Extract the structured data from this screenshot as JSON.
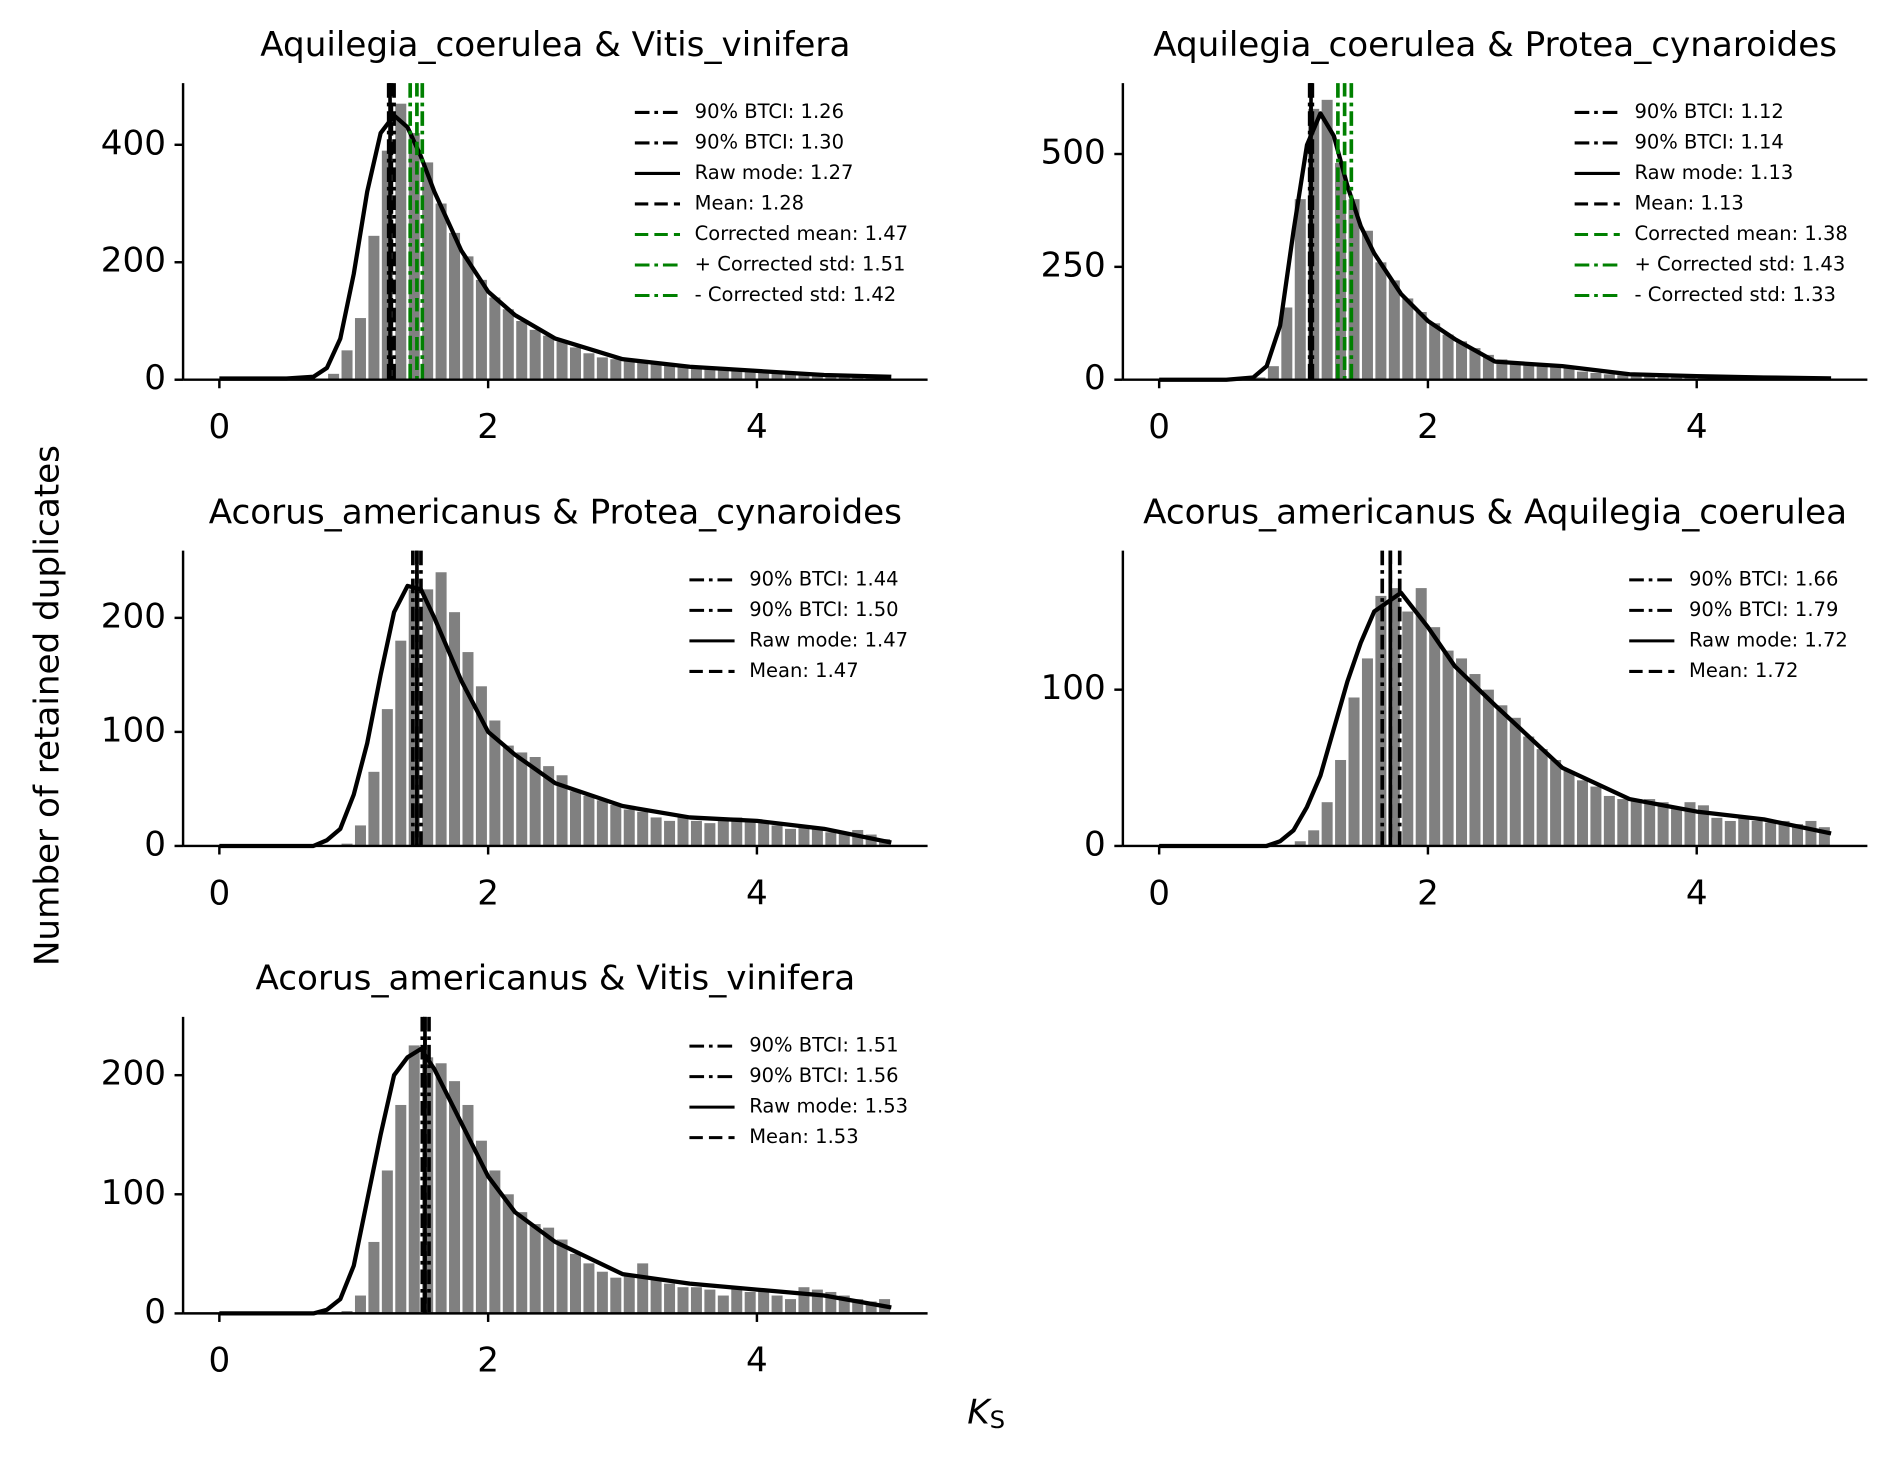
{
  "figure": {
    "ylabel": "Number of retained duplicates",
    "xlabel": "K",
    "xlabel_subscript": "S"
  },
  "chart_data": [
    {
      "type": "histogram",
      "title": "Aquilegia_coerulea & Vitis_vinifera",
      "color": "#808080",
      "bins": [
        0,
        0.1,
        0.2,
        0.3,
        0.4,
        0.5,
        0.6,
        0.7,
        0.8,
        0.9,
        1,
        1.1,
        1.2,
        1.3,
        1.4,
        1.5,
        1.6,
        1.7,
        1.8,
        1.9,
        2,
        2.1,
        2.2,
        2.3,
        2.4,
        2.5,
        2.6,
        2.7,
        2.8,
        2.9,
        3,
        3.1,
        3.2,
        3.3,
        3.4,
        3.5,
        3.6,
        3.7,
        3.8,
        3.9,
        4,
        4.1,
        4.2,
        4.3,
        4.4,
        4.5,
        4.6,
        4.7,
        4.8,
        4.9,
        5
      ],
      "values": [
        0,
        0,
        0,
        0,
        0,
        0,
        0,
        2,
        10,
        50,
        105,
        245,
        390,
        470,
        420,
        370,
        300,
        250,
        210,
        170,
        140,
        120,
        100,
        85,
        75,
        65,
        55,
        45,
        38,
        35,
        32,
        30,
        28,
        25,
        22,
        20,
        18,
        17,
        16,
        15,
        14,
        13,
        12,
        11,
        10,
        10,
        9,
        9,
        8,
        7
      ],
      "kde": {
        "color": "#000000",
        "x": [
          0,
          0.5,
          0.7,
          0.8,
          0.9,
          1,
          1.1,
          1.2,
          1.3,
          1.4,
          1.5,
          1.6,
          1.8,
          2,
          2.2,
          2.5,
          3,
          3.5,
          4,
          4.5,
          5
        ],
        "values": [
          2,
          2,
          5,
          20,
          70,
          180,
          320,
          420,
          450,
          430,
          380,
          320,
          220,
          150,
          110,
          70,
          35,
          22,
          15,
          8,
          5
        ]
      },
      "lines": [
        {
          "label": "90% BTCI: 1.26",
          "value": 1.26,
          "color": "#000000",
          "style": "dashdot"
        },
        {
          "label": "90% BTCI: 1.30",
          "value": 1.3,
          "color": "#000000",
          "style": "dashdot"
        },
        {
          "label": "Raw mode: 1.27",
          "value": 1.27,
          "color": "#000000",
          "style": "solid"
        },
        {
          "label": "Mean: 1.28",
          "value": 1.28,
          "color": "#000000",
          "style": "dashed"
        },
        {
          "label": "Corrected mean: 1.47",
          "value": 1.47,
          "color": "#008000",
          "style": "dashed"
        },
        {
          "label": "+ Corrected std: 1.51",
          "value": 1.51,
          "color": "#008000",
          "style": "dashdot"
        },
        {
          "label": "- Corrected std: 1.42",
          "value": 1.42,
          "color": "#008000",
          "style": "dashdot"
        }
      ],
      "xlim": [
        -0.27,
        5.27
      ],
      "xticks": [
        0,
        2,
        4
      ],
      "ylim": [
        0,
        505
      ],
      "yticks": [
        0,
        200,
        400
      ]
    },
    {
      "type": "histogram",
      "title": "Aquilegia_coerulea & Protea_cynaroides",
      "color": "#808080",
      "bins": [
        0,
        0.1,
        0.2,
        0.3,
        0.4,
        0.5,
        0.6,
        0.7,
        0.8,
        0.9,
        1,
        1.1,
        1.2,
        1.3,
        1.4,
        1.5,
        1.6,
        1.7,
        1.8,
        1.9,
        2,
        2.1,
        2.2,
        2.3,
        2.4,
        2.5,
        2.6,
        2.7,
        2.8,
        2.9,
        3,
        3.1,
        3.2,
        3.3,
        3.4,
        3.5,
        3.6,
        3.7,
        3.8,
        3.9,
        4,
        4.1,
        4.2,
        4.3,
        4.4,
        4.5,
        4.6,
        4.7,
        4.8,
        4.9,
        5
      ],
      "values": [
        0,
        0,
        0,
        0,
        0,
        0,
        0,
        5,
        30,
        160,
        400,
        600,
        620,
        480,
        400,
        330,
        260,
        220,
        180,
        150,
        125,
        100,
        85,
        70,
        55,
        45,
        35,
        38,
        35,
        32,
        25,
        18,
        15,
        12,
        10,
        9,
        8,
        7,
        6,
        6,
        5,
        5,
        4,
        4,
        4,
        3,
        3,
        3,
        2,
        2
      ],
      "kde": {
        "color": "#000000",
        "x": [
          0,
          0.5,
          0.7,
          0.8,
          0.9,
          1,
          1.1,
          1.2,
          1.3,
          1.4,
          1.5,
          1.6,
          1.8,
          2,
          2.2,
          2.5,
          3,
          3.5,
          4,
          4.5,
          5
        ],
        "values": [
          0,
          0,
          5,
          30,
          120,
          330,
          520,
          590,
          540,
          430,
          340,
          280,
          190,
          130,
          90,
          40,
          30,
          12,
          8,
          5,
          3
        ]
      },
      "lines": [
        {
          "label": "90% BTCI: 1.12",
          "value": 1.12,
          "color": "#000000",
          "style": "dashdot"
        },
        {
          "label": "90% BTCI: 1.14",
          "value": 1.14,
          "color": "#000000",
          "style": "dashdot"
        },
        {
          "label": "Raw mode: 1.13",
          "value": 1.13,
          "color": "#000000",
          "style": "solid"
        },
        {
          "label": "Mean: 1.13",
          "value": 1.13,
          "color": "#000000",
          "style": "dashed"
        },
        {
          "label": "Corrected mean: 1.38",
          "value": 1.38,
          "color": "#008000",
          "style": "dashed"
        },
        {
          "label": "+ Corrected std: 1.43",
          "value": 1.43,
          "color": "#008000",
          "style": "dashdot"
        },
        {
          "label": "- Corrected std: 1.33",
          "value": 1.33,
          "color": "#008000",
          "style": "dashdot"
        }
      ],
      "xlim": [
        -0.27,
        5.27
      ],
      "xticks": [
        0,
        2,
        4
      ],
      "ylim": [
        0,
        657
      ],
      "yticks": [
        0,
        250,
        500
      ]
    },
    {
      "type": "histogram",
      "title": "Acorus_americanus & Protea_cynaroides",
      "color": "#808080",
      "bins": [
        0,
        0.1,
        0.2,
        0.3,
        0.4,
        0.5,
        0.6,
        0.7,
        0.8,
        0.9,
        1,
        1.1,
        1.2,
        1.3,
        1.4,
        1.5,
        1.6,
        1.7,
        1.8,
        1.9,
        2,
        2.1,
        2.2,
        2.3,
        2.4,
        2.5,
        2.6,
        2.7,
        2.8,
        2.9,
        3,
        3.1,
        3.2,
        3.3,
        3.4,
        3.5,
        3.6,
        3.7,
        3.8,
        3.9,
        4,
        4.1,
        4.2,
        4.3,
        4.4,
        4.5,
        4.6,
        4.7,
        4.8,
        4.9,
        5
      ],
      "values": [
        0,
        0,
        0,
        0,
        0,
        0,
        0,
        0,
        0,
        2,
        18,
        65,
        120,
        180,
        225,
        225,
        240,
        205,
        170,
        140,
        110,
        88,
        82,
        78,
        70,
        62,
        48,
        44,
        40,
        36,
        32,
        30,
        25,
        22,
        25,
        22,
        20,
        22,
        25,
        22,
        20,
        18,
        15,
        18,
        15,
        12,
        12,
        14,
        10,
        6
      ],
      "kde": {
        "color": "#000000",
        "x": [
          0,
          0.5,
          0.7,
          0.8,
          0.9,
          1,
          1.1,
          1.2,
          1.3,
          1.4,
          1.5,
          1.6,
          1.8,
          2,
          2.2,
          2.5,
          3,
          3.5,
          4,
          4.5,
          5
        ],
        "values": [
          0,
          0,
          0,
          5,
          15,
          45,
          90,
          150,
          205,
          228,
          225,
          200,
          145,
          100,
          80,
          55,
          35,
          25,
          22,
          15,
          3
        ]
      },
      "lines": [
        {
          "label": "90% BTCI: 1.44",
          "value": 1.44,
          "color": "#000000",
          "style": "dashdot"
        },
        {
          "label": "90% BTCI: 1.50",
          "value": 1.5,
          "color": "#000000",
          "style": "dashdot"
        },
        {
          "label": "Raw mode: 1.47",
          "value": 1.47,
          "color": "#000000",
          "style": "solid"
        },
        {
          "label": "Mean: 1.47",
          "value": 1.47,
          "color": "#000000",
          "style": "dashed"
        }
      ],
      "xlim": [
        -0.27,
        5.27
      ],
      "xticks": [
        0,
        2,
        4
      ],
      "ylim": [
        0,
        259
      ],
      "yticks": [
        0,
        100,
        200
      ]
    },
    {
      "type": "histogram",
      "title": "Acorus_americanus & Aquilegia_coerulea",
      "color": "#808080",
      "bins": [
        0,
        0.1,
        0.2,
        0.3,
        0.4,
        0.5,
        0.6,
        0.7,
        0.8,
        0.9,
        1,
        1.1,
        1.2,
        1.3,
        1.4,
        1.5,
        1.6,
        1.7,
        1.8,
        1.9,
        2,
        2.1,
        2.2,
        2.3,
        2.4,
        2.5,
        2.6,
        2.7,
        2.8,
        2.9,
        3,
        3.1,
        3.2,
        3.3,
        3.4,
        3.5,
        3.6,
        3.7,
        3.8,
        3.9,
        4,
        4.1,
        4.2,
        4.3,
        4.4,
        4.5,
        4.6,
        4.7,
        4.8,
        4.9,
        5
      ],
      "values": [
        0,
        0,
        0,
        0,
        0,
        0,
        0,
        0,
        0,
        0,
        3,
        10,
        28,
        55,
        95,
        120,
        160,
        165,
        150,
        165,
        140,
        125,
        120,
        110,
        100,
        90,
        82,
        70,
        62,
        55,
        48,
        42,
        38,
        32,
        30,
        30,
        30,
        28,
        25,
        28,
        26,
        18,
        16,
        18,
        16,
        15,
        16,
        14,
        16,
        12
      ],
      "kde": {
        "color": "#000000",
        "x": [
          0,
          0.5,
          0.7,
          0.8,
          0.9,
          1,
          1.1,
          1.2,
          1.3,
          1.4,
          1.5,
          1.6,
          1.8,
          2,
          2.2,
          2.5,
          3,
          3.5,
          4,
          4.5,
          5
        ],
        "values": [
          0,
          0,
          0,
          0,
          3,
          10,
          25,
          45,
          75,
          105,
          130,
          150,
          162,
          140,
          115,
          90,
          50,
          30,
          22,
          17,
          8
        ]
      },
      "lines": [
        {
          "label": "90% BTCI: 1.66",
          "value": 1.66,
          "color": "#000000",
          "style": "dashdot"
        },
        {
          "label": "90% BTCI: 1.79",
          "value": 1.79,
          "color": "#000000",
          "style": "dashdot"
        },
        {
          "label": "Raw mode: 1.72",
          "value": 1.72,
          "color": "#000000",
          "style": "solid"
        },
        {
          "label": "Mean: 1.72",
          "value": 1.72,
          "color": "#000000",
          "style": "dashed"
        }
      ],
      "xlim": [
        -0.27,
        5.27
      ],
      "xticks": [
        0,
        2,
        4
      ],
      "ylim": [
        0,
        189
      ],
      "yticks": [
        0,
        100
      ]
    },
    {
      "type": "histogram",
      "title": "Acorus_americanus & Vitis_vinifera",
      "color": "#808080",
      "bins": [
        0,
        0.1,
        0.2,
        0.3,
        0.4,
        0.5,
        0.6,
        0.7,
        0.8,
        0.9,
        1,
        1.1,
        1.2,
        1.3,
        1.4,
        1.5,
        1.6,
        1.7,
        1.8,
        1.9,
        2,
        2.1,
        2.2,
        2.3,
        2.4,
        2.5,
        2.6,
        2.7,
        2.8,
        2.9,
        3,
        3.1,
        3.2,
        3.3,
        3.4,
        3.5,
        3.6,
        3.7,
        3.8,
        3.9,
        4,
        4.1,
        4.2,
        4.3,
        4.4,
        4.5,
        4.6,
        4.7,
        4.8,
        4.9,
        5
      ],
      "values": [
        0,
        0,
        0,
        0,
        0,
        0,
        0,
        0,
        0,
        2,
        15,
        60,
        120,
        175,
        225,
        215,
        210,
        195,
        175,
        145,
        120,
        100,
        85,
        75,
        72,
        62,
        50,
        42,
        35,
        30,
        32,
        42,
        28,
        25,
        22,
        22,
        20,
        15,
        22,
        18,
        20,
        15,
        12,
        22,
        20,
        18,
        15,
        12,
        10,
        12
      ],
      "kde": {
        "color": "#000000",
        "x": [
          0,
          0.5,
          0.7,
          0.8,
          0.9,
          1,
          1.1,
          1.2,
          1.3,
          1.4,
          1.5,
          1.6,
          1.8,
          2,
          2.2,
          2.5,
          3,
          3.5,
          4,
          4.5,
          5
        ],
        "values": [
          0,
          0,
          0,
          3,
          12,
          40,
          95,
          150,
          200,
          215,
          222,
          205,
          160,
          115,
          85,
          60,
          33,
          25,
          20,
          15,
          5
        ]
      },
      "lines": [
        {
          "label": "90% BTCI: 1.51",
          "value": 1.51,
          "color": "#000000",
          "style": "dashdot"
        },
        {
          "label": "90% BTCI: 1.56",
          "value": 1.56,
          "color": "#000000",
          "style": "dashdot"
        },
        {
          "label": "Raw mode: 1.53",
          "value": 1.53,
          "color": "#000000",
          "style": "solid"
        },
        {
          "label": "Mean: 1.53",
          "value": 1.53,
          "color": "#000000",
          "style": "dashed"
        }
      ],
      "xlim": [
        -0.27,
        5.27
      ],
      "xticks": [
        0,
        2,
        4
      ],
      "ylim": [
        0,
        249
      ],
      "yticks": [
        0,
        100,
        200
      ]
    }
  ]
}
